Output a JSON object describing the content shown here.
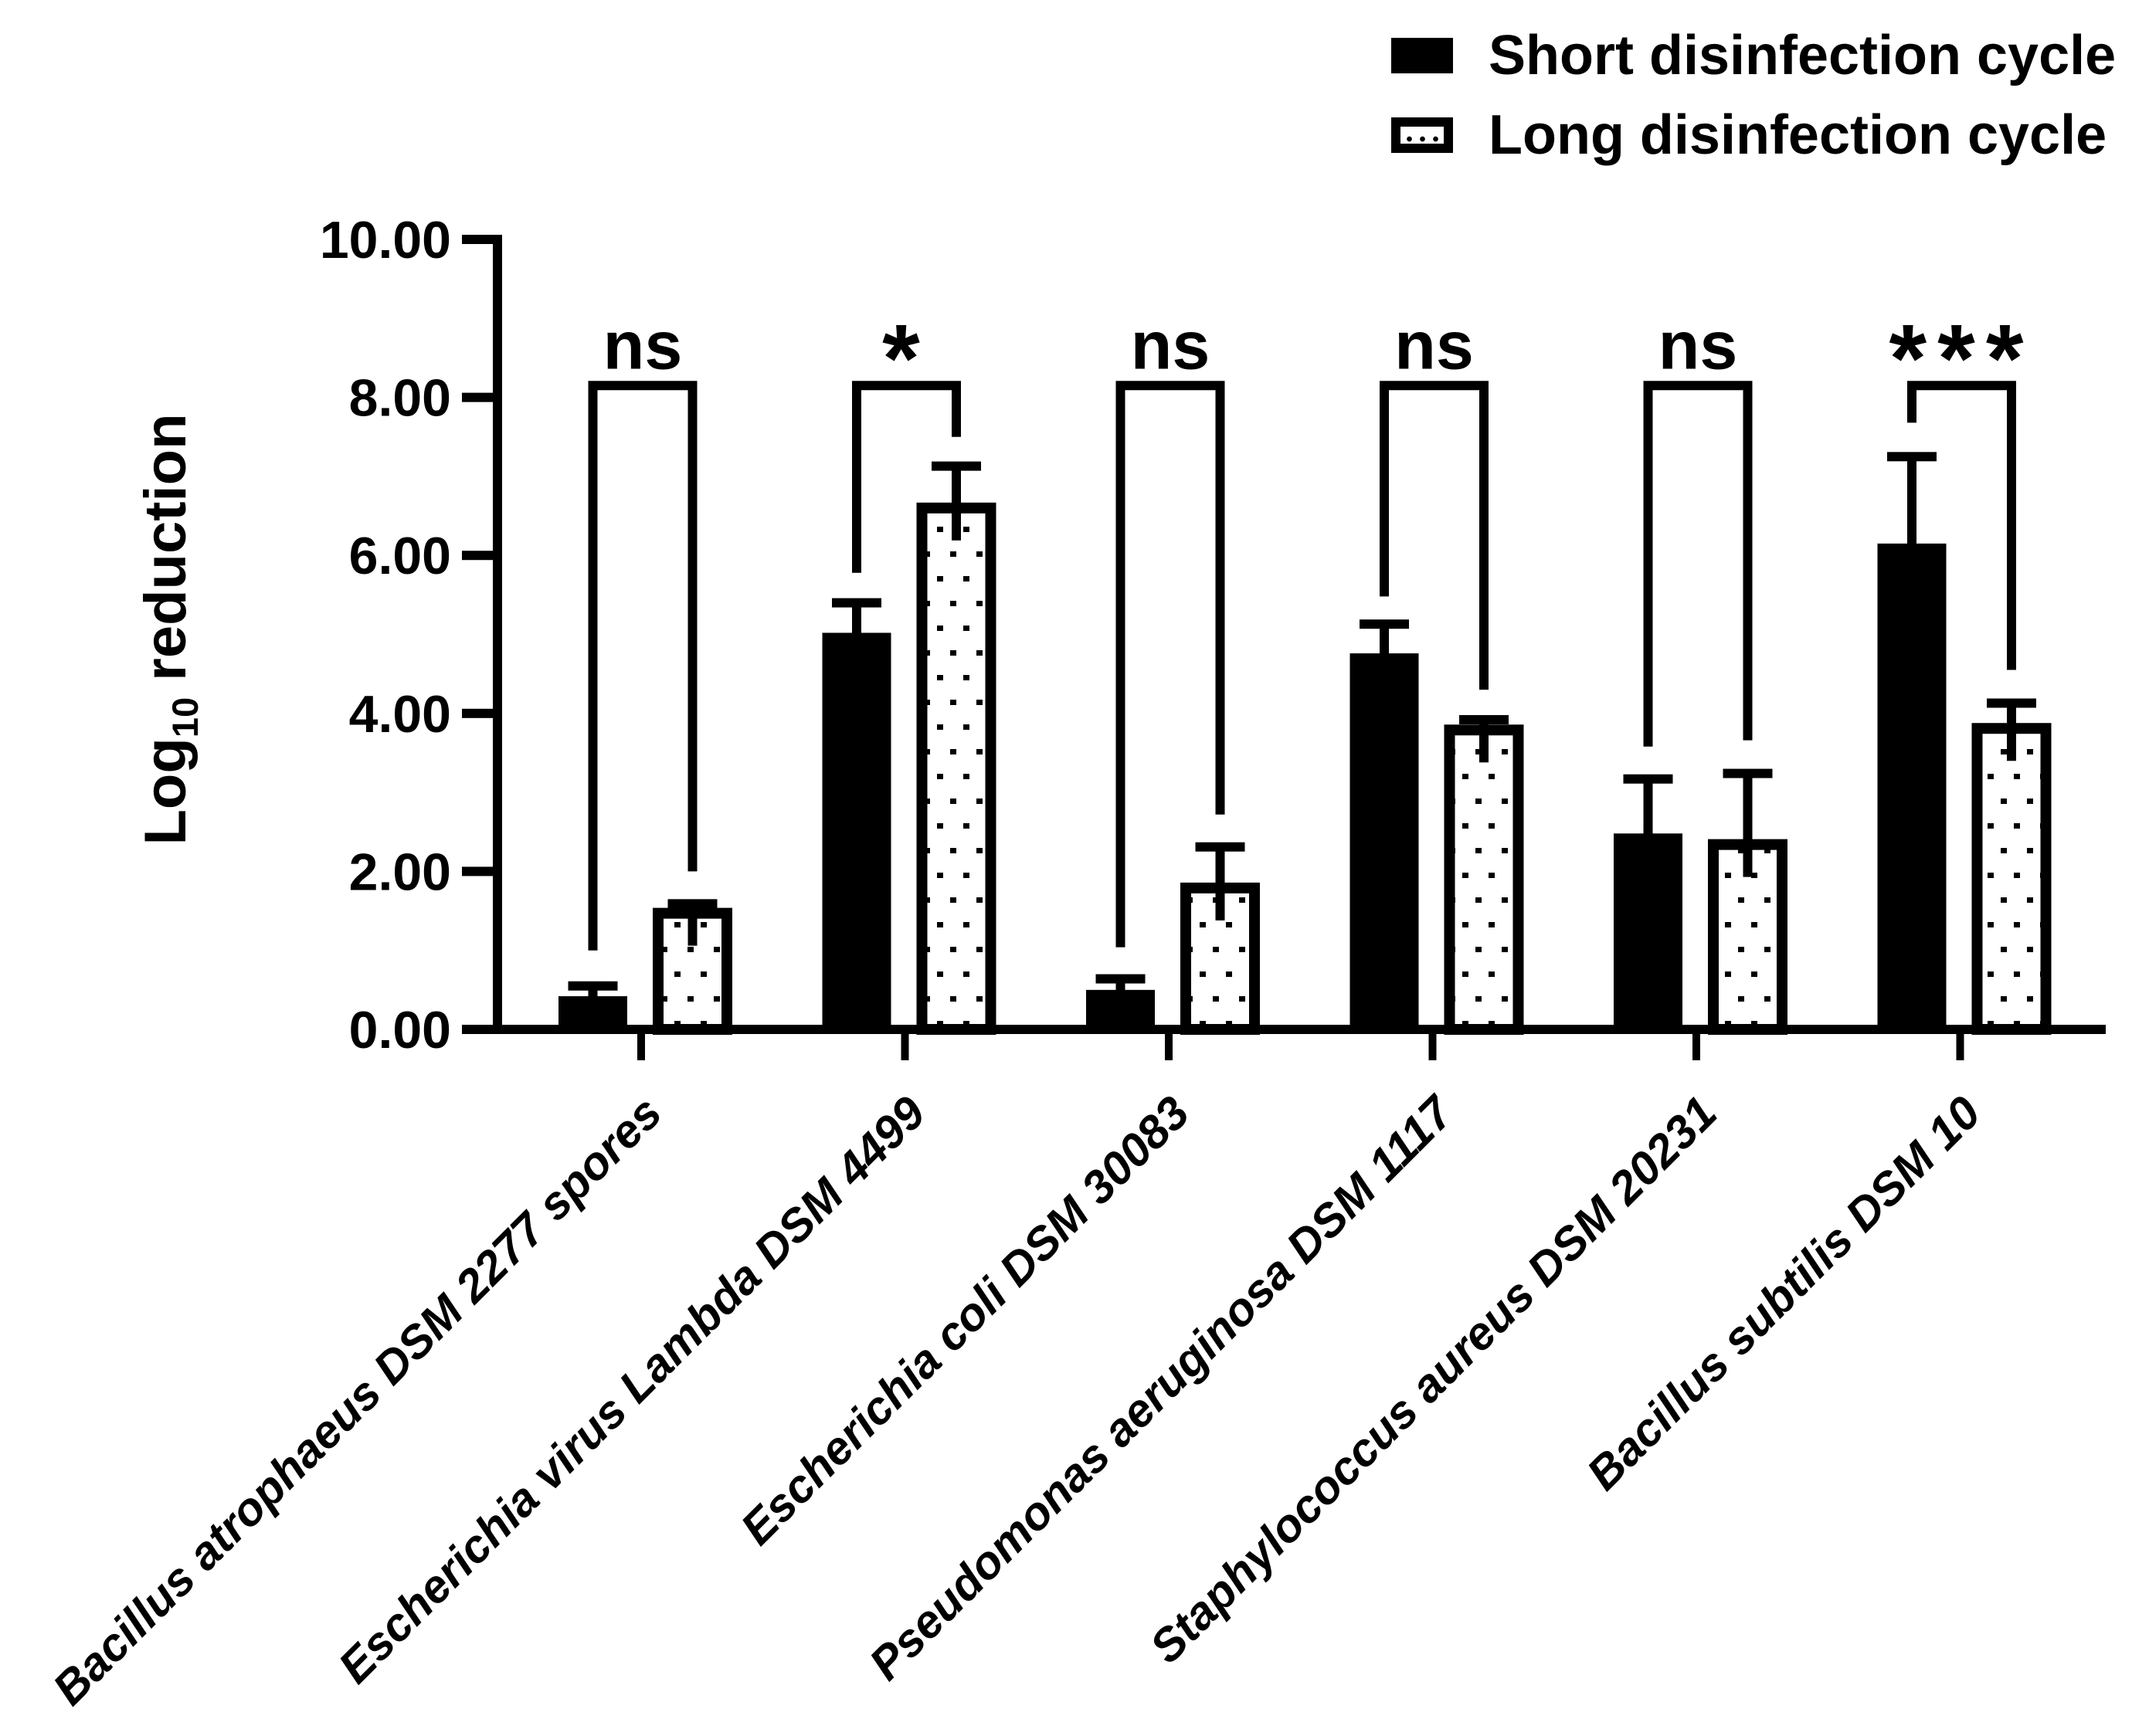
{
  "figure_type": "grouped-bar-chart",
  "legend": {
    "items": [
      {
        "label": "Short disinfection cycle",
        "swatch": "solid"
      },
      {
        "label": "Long disinfection cycle",
        "swatch": "dotted"
      }
    ]
  },
  "y_axis": {
    "label_main": "Log",
    "label_sub": "10",
    "label_rest": " reduction",
    "range": [
      0,
      10
    ],
    "ticks": [
      {
        "value": 0,
        "label": "0.00"
      },
      {
        "value": 2,
        "label": "2.00"
      },
      {
        "value": 4,
        "label": "4.00"
      },
      {
        "value": 6,
        "label": "6.00"
      },
      {
        "value": 8,
        "label": "8.00"
      },
      {
        "value": 10,
        "label": "10.00"
      }
    ]
  },
  "chart_data": {
    "type": "bar",
    "title": "",
    "xlabel": "",
    "ylabel": "Log10 reduction",
    "ylim": [
      0,
      10
    ],
    "grid": false,
    "legend_position": "top-right",
    "categories": [
      "Bacillus atrophaeus DSM 2277 spores",
      "Escherichia virus Lambda DSM 4499",
      "Escherichia coli DSM 30083",
      "Pseudomonas aeruginosa DSM 1117",
      "Staphylococcus aureus DSM 20231",
      "Bacillus subtilis DSM 10"
    ],
    "series": [
      {
        "name": "Short disinfection cycle",
        "style": "solid-black",
        "values": [
          0.42,
          5.02,
          0.5,
          4.76,
          2.48,
          6.15
        ],
        "errors_plus": [
          0.13,
          0.38,
          0.14,
          0.37,
          0.69,
          1.1
        ]
      },
      {
        "name": "Long disinfection cycle",
        "style": "dotted-white",
        "values": [
          1.47,
          6.6,
          1.79,
          3.79,
          2.34,
          3.81
        ],
        "errors_plus": [
          0.12,
          0.53,
          0.52,
          0.13,
          0.9,
          0.32
        ]
      }
    ],
    "significance": [
      {
        "label": "ns",
        "bracket_height": 8.15,
        "left_leg_bottom": 1.0,
        "right_leg_bottom": 2.0
      },
      {
        "label": "*",
        "bracket_height": 8.15,
        "left_leg_bottom": 5.78,
        "right_leg_bottom": 7.5
      },
      {
        "label": "ns",
        "bracket_height": 8.15,
        "left_leg_bottom": 1.04,
        "right_leg_bottom": 2.72
      },
      {
        "label": "ns",
        "bracket_height": 8.15,
        "left_leg_bottom": 5.48,
        "right_leg_bottom": 4.3
      },
      {
        "label": "ns",
        "bracket_height": 8.15,
        "left_leg_bottom": 3.58,
        "right_leg_bottom": 3.66
      },
      {
        "label": "***",
        "bracket_height": 8.15,
        "left_leg_bottom": 7.68,
        "right_leg_bottom": 4.55
      }
    ],
    "colors": {
      "bar_fill": "#000000",
      "bar_outline": "#000000",
      "background": "#ffffff",
      "text": "#000000"
    }
  }
}
